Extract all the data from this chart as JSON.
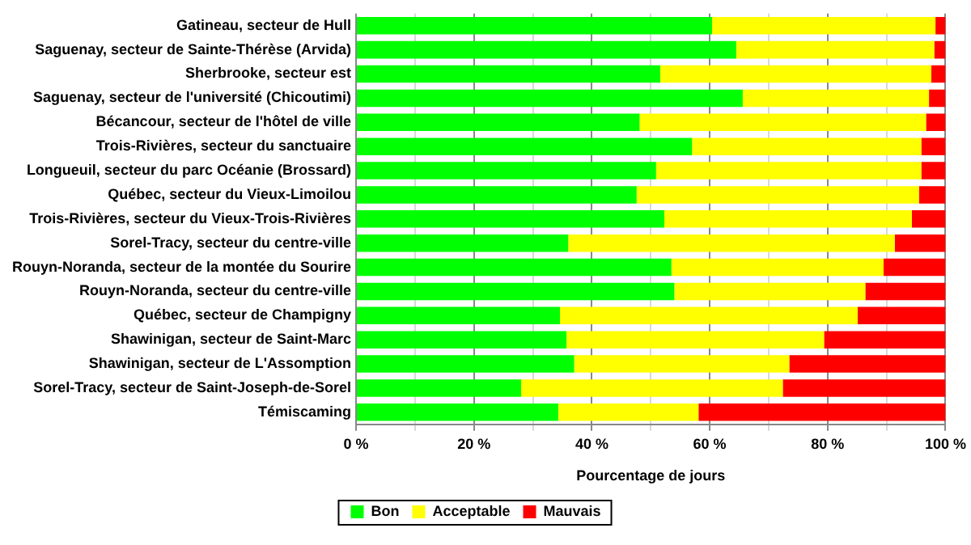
{
  "chart_data": {
    "type": "bar",
    "orientation": "horizontal",
    "stacked": true,
    "xlabel": "Pourcentage de jours",
    "categories": [
      "Gatineau, secteur de Hull",
      "Saguenay, secteur de Sainte-Thérèse (Arvida)",
      "Sherbrooke, secteur est",
      "Saguenay, secteur de l'université (Chicoutimi)",
      "Bécancour, secteur de l'hôtel de ville",
      "Trois-Rivières, secteur du sanctuaire",
      "Longueuil, secteur du parc Océanie (Brossard)",
      "Québec, secteur du Vieux-Limoilou",
      "Trois-Rivières, secteur du Vieux-Trois-Rivières",
      "Sorel-Tracy, secteur du centre-ville",
      "Rouyn-Noranda, secteur de la montée du Sourire",
      "Rouyn-Noranda, secteur du centre-ville",
      "Québec, secteur de Champigny",
      "Shawinigan, secteur de Saint-Marc",
      "Shawinigan, secteur de L'Assomption",
      "Sorel-Tracy, secteur de Saint-Joseph-de-Sorel",
      "Témiscaming"
    ],
    "series": [
      {
        "name": "Bon",
        "color": "#00ff00",
        "values": [
          60.4,
          64.5,
          51.6,
          65.6,
          48.1,
          57.0,
          50.9,
          47.6,
          52.3,
          36.0,
          53.5,
          54.0,
          34.6,
          35.7,
          37.0,
          28.0,
          34.3
        ]
      },
      {
        "name": "Acceptable",
        "color": "#ffff00",
        "values": [
          37.9,
          33.6,
          46.0,
          31.6,
          48.6,
          38.9,
          45.0,
          47.9,
          42.0,
          55.4,
          36.0,
          32.4,
          50.5,
          43.7,
          36.5,
          44.4,
          23.8
        ]
      },
      {
        "name": "Mauvais",
        "color": "#ff0000",
        "values": [
          1.7,
          1.9,
          2.4,
          2.8,
          3.3,
          4.1,
          4.1,
          4.5,
          5.7,
          8.6,
          10.5,
          13.6,
          14.9,
          20.6,
          26.5,
          27.6,
          41.9
        ]
      }
    ],
    "xlim": [
      0,
      100
    ],
    "xticks": [
      {
        "value": 0,
        "label": "0 %"
      },
      {
        "value": 10,
        "label": null
      },
      {
        "value": 20,
        "label": "20 %"
      },
      {
        "value": 30,
        "label": null
      },
      {
        "value": 40,
        "label": "40 %"
      },
      {
        "value": 50,
        "label": null
      },
      {
        "value": 60,
        "label": "60 %"
      },
      {
        "value": 70,
        "label": null
      },
      {
        "value": 80,
        "label": "80 %"
      },
      {
        "value": 90,
        "label": null
      },
      {
        "value": 100,
        "label": "100 %"
      }
    ],
    "grid": "x",
    "legend": "bottom"
  }
}
